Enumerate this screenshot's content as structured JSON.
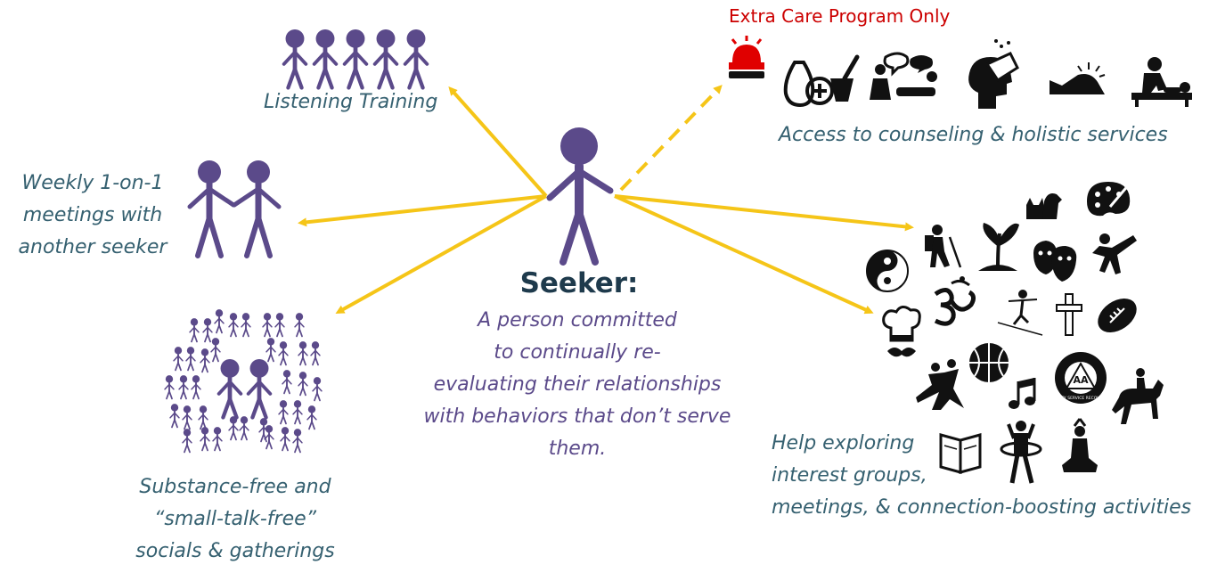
{
  "seeker": {
    "title": "Seeker:",
    "description": [
      "A person committed",
      "to continually re-",
      "evaluating their relationships",
      "with behaviors that don’t serve",
      "them."
    ]
  },
  "listening": {
    "label": "Listening Training"
  },
  "weekly": {
    "lines": [
      "Weekly 1-on-1",
      "meetings with",
      "another seeker"
    ]
  },
  "socials": {
    "lines": [
      "Substance-free and",
      "“small-talk-free”",
      "socials & gatherings"
    ]
  },
  "extra_care": {
    "heading": "Extra Care Program Only",
    "label": "Access to counseling & holistic services",
    "icons": [
      "siren-icon",
      "herbal-medicine-icon",
      "counseling-session-icon",
      "head-care-icon",
      "sunrise-landscape-icon",
      "massage-therapy-icon"
    ]
  },
  "interests": {
    "lines": [
      "Help exploring",
      "interest groups,",
      "meetings, & connection-boosting activities"
    ],
    "icons": [
      "cat-dog-icon",
      "paint-palette-icon",
      "hiker-icon",
      "sprout-icon",
      "theater-masks-icon",
      "martial-arts-kick-icon",
      "yin-yang-icon",
      "om-symbol-icon",
      "tightrope-walker-icon",
      "cross-icon",
      "football-icon",
      "chef-hat-icon",
      "dancing-couple-icon",
      "basketball-icon",
      "music-note-icon",
      "aa-recovery-icon",
      "horse-rider-icon",
      "open-book-icon",
      "hula-hoop-icon",
      "meditation-icon"
    ],
    "aa_letters": "AA",
    "aa_ring_text": "UNITY SERVICE RECOVERY"
  },
  "colors": {
    "figure": "#5b4a8a",
    "arrow": "#f5c518",
    "label_teal": "#356070",
    "extra_care_red": "#cc0000",
    "seeker_title": "#1e3a4c"
  }
}
